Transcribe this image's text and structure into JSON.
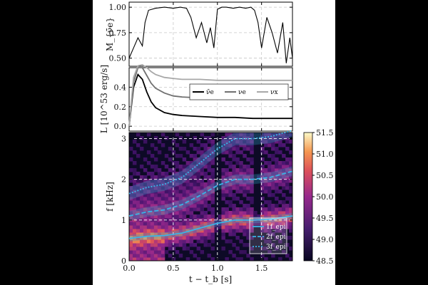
{
  "chart_data": [
    {
      "type": "line",
      "panel": "top",
      "ylabel": "M_{ν̄e}",
      "yticks": [
        "0.50",
        "0.75",
        "1.00"
      ],
      "ylim": [
        0.42,
        1.05
      ],
      "xlim": [
        0.0,
        1.85
      ],
      "grid": true,
      "series": [
        {
          "color": "#000000",
          "x": [
            0.0,
            0.05,
            0.1,
            0.15,
            0.18,
            0.22,
            0.3,
            0.4,
            0.5,
            0.58,
            0.65,
            0.7,
            0.76,
            0.82,
            0.88,
            0.92,
            0.96,
            1.0,
            1.05,
            1.1,
            1.18,
            1.25,
            1.32,
            1.38,
            1.42,
            1.46,
            1.5,
            1.56,
            1.62,
            1.68,
            1.74,
            1.78,
            1.82,
            1.85
          ],
          "values": [
            0.5,
            0.6,
            0.7,
            0.62,
            0.85,
            0.97,
            0.99,
            1.0,
            0.99,
            1.0,
            0.99,
            0.9,
            0.7,
            0.85,
            0.65,
            0.8,
            0.6,
            0.98,
            1.0,
            1.0,
            0.99,
            1.0,
            0.99,
            1.0,
            0.97,
            0.85,
            0.6,
            0.9,
            0.75,
            0.55,
            0.85,
            0.45,
            0.7,
            0.5
          ]
        }
      ]
    },
    {
      "type": "line",
      "panel": "middle",
      "ylabel": "L [10^53 erg/s]",
      "yticks": [
        "0.0",
        "0.2",
        "0.4"
      ],
      "ylim": [
        -0.05,
        0.6
      ],
      "xlim": [
        0.0,
        1.85
      ],
      "grid": true,
      "legend": "top-right",
      "series": [
        {
          "name": "ν̄e",
          "color": "#000000",
          "x": [
            0.0,
            0.05,
            0.1,
            0.15,
            0.2,
            0.25,
            0.3,
            0.4,
            0.5,
            0.6,
            0.8,
            1.0,
            1.2,
            1.4,
            1.6,
            1.85
          ],
          "values": [
            0.0,
            0.4,
            0.53,
            0.48,
            0.35,
            0.25,
            0.19,
            0.14,
            0.12,
            0.11,
            0.1,
            0.09,
            0.09,
            0.08,
            0.08,
            0.08
          ]
        },
        {
          "name": "νe",
          "color": "#707070",
          "x": [
            0.0,
            0.05,
            0.1,
            0.15,
            0.2,
            0.25,
            0.3,
            0.4,
            0.5,
            0.6,
            0.8,
            1.0,
            1.2,
            1.4,
            1.6,
            1.85
          ],
          "values": [
            0.0,
            0.45,
            0.6,
            0.6,
            0.52,
            0.44,
            0.39,
            0.34,
            0.31,
            0.3,
            0.29,
            0.28,
            0.28,
            0.28,
            0.28,
            0.28
          ]
        },
        {
          "name": "νx",
          "color": "#a8a8a8",
          "x": [
            0.0,
            0.05,
            0.1,
            0.15,
            0.2,
            0.25,
            0.3,
            0.4,
            0.5,
            0.6,
            0.8,
            1.0,
            1.2,
            1.4,
            1.6,
            1.85
          ],
          "values": [
            0.0,
            0.5,
            0.62,
            0.63,
            0.6,
            0.56,
            0.53,
            0.5,
            0.49,
            0.48,
            0.48,
            0.47,
            0.47,
            0.47,
            0.47,
            0.47
          ]
        }
      ]
    },
    {
      "type": "heatmap",
      "panel": "bottom",
      "ylabel": "f [kHz]",
      "xlabel": "t − t_b [s]",
      "xticks": [
        "0.0",
        "0.5",
        "1.0",
        "1.5"
      ],
      "yticks": [
        "0",
        "1",
        "2",
        "3"
      ],
      "xlim": [
        0.0,
        1.85
      ],
      "ylim": [
        0,
        3.15
      ],
      "colorbar": {
        "ticks": [
          "48.5",
          "49.0",
          "49.5",
          "50.0",
          "50.5",
          "51.0",
          "51.5"
        ],
        "range": [
          48.5,
          51.5
        ]
      },
      "legend": "bottom-right",
      "series": [
        {
          "name": "1f_epi",
          "color": "#39b3e6",
          "style": "solid",
          "x": [
            0.0,
            0.2,
            0.4,
            0.6,
            0.8,
            1.0,
            1.2,
            1.4,
            1.6,
            1.85
          ],
          "values": [
            0.55,
            0.6,
            0.62,
            0.68,
            0.8,
            0.92,
            1.0,
            1.0,
            1.02,
            1.1
          ]
        },
        {
          "name": "2f_epi",
          "color": "#39b3e6",
          "style": "dashed",
          "x": [
            0.0,
            0.2,
            0.4,
            0.6,
            0.8,
            1.0,
            1.2,
            1.4,
            1.6,
            1.85
          ],
          "values": [
            1.1,
            1.2,
            1.25,
            1.38,
            1.6,
            1.85,
            2.0,
            2.0,
            2.05,
            2.2
          ]
        },
        {
          "name": "3f_epi",
          "color": "#39b3e6",
          "style": "dotted",
          "x": [
            0.0,
            0.2,
            0.4,
            0.6,
            0.8,
            1.0,
            1.2,
            1.4,
            1.6,
            1.85
          ],
          "values": [
            1.65,
            1.8,
            1.88,
            2.05,
            2.4,
            2.75,
            3.0,
            3.0,
            3.05,
            3.2
          ]
        }
      ],
      "hlines": [
        1,
        2,
        3
      ],
      "vlines": [
        0.5,
        1.0,
        1.5
      ]
    }
  ]
}
